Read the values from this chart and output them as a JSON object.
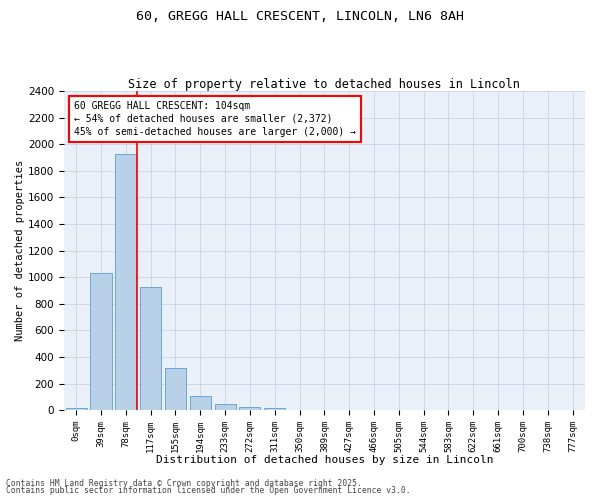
{
  "title_line1": "60, GREGG HALL CRESCENT, LINCOLN, LN6 8AH",
  "title_line2": "Size of property relative to detached houses in Lincoln",
  "xlabel": "Distribution of detached houses by size in Lincoln",
  "ylabel": "Number of detached properties",
  "bar_labels": [
    "0sqm",
    "39sqm",
    "78sqm",
    "117sqm",
    "155sqm",
    "194sqm",
    "233sqm",
    "272sqm",
    "311sqm",
    "350sqm",
    "389sqm",
    "427sqm",
    "466sqm",
    "505sqm",
    "544sqm",
    "583sqm",
    "622sqm",
    "661sqm",
    "700sqm",
    "738sqm",
    "777sqm"
  ],
  "bar_values": [
    15,
    1035,
    1930,
    930,
    320,
    110,
    50,
    25,
    20,
    0,
    0,
    0,
    0,
    0,
    0,
    0,
    0,
    0,
    0,
    0,
    0
  ],
  "bar_color": "#b8d0e8",
  "bar_edge_color": "#5a9fd4",
  "vline_color": "red",
  "vline_x": 2.45,
  "ylim": [
    0,
    2400
  ],
  "yticks": [
    0,
    200,
    400,
    600,
    800,
    1000,
    1200,
    1400,
    1600,
    1800,
    2000,
    2200,
    2400
  ],
  "annotation_text": "60 GREGG HALL CRESCENT: 104sqm\n← 54% of detached houses are smaller (2,372)\n45% of semi-detached houses are larger (2,000) →",
  "bg_color": "#eaf0f8",
  "grid_color": "#c5d5e5",
  "footer_line1": "Contains HM Land Registry data © Crown copyright and database right 2025.",
  "footer_line2": "Contains public sector information licensed under the Open Government Licence v3.0."
}
